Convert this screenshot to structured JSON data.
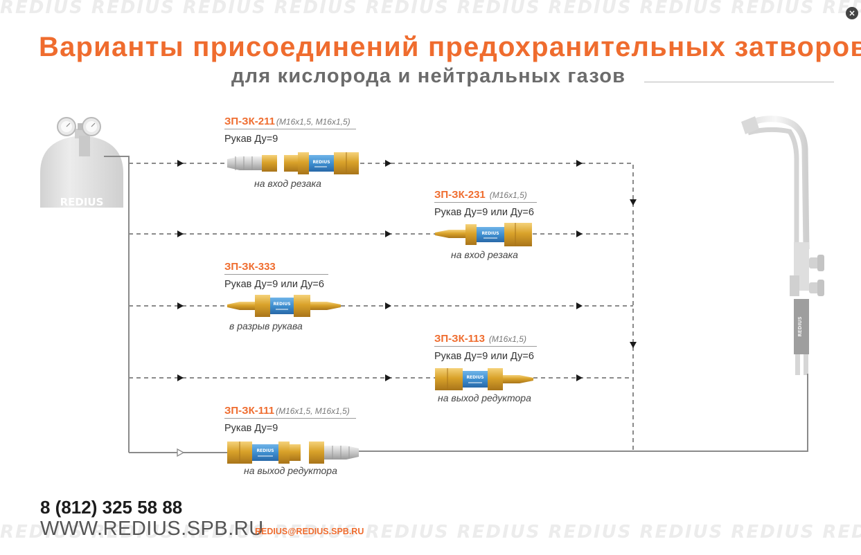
{
  "watermark": "REDIUS",
  "header": {
    "title": "Варианты присоединений предохранительных затворов",
    "subtitle": "для кислорода и нейтральных газов"
  },
  "cylinder_logo": "REDIUS",
  "handle_logo": "REDIUS",
  "variants": [
    {
      "code": "ЗП-ЗК-211",
      "spec": "(М16х1,5, М16х1,5)",
      "hose": "Рукав Ду=9",
      "caption": "на вход резака",
      "body_logo": "REDIUS"
    },
    {
      "code": "ЗП-ЗК-231",
      "spec": "(М16х1,5)",
      "hose": "Рукав Ду=9 или Ду=6",
      "caption": "на вход резака",
      "body_logo": "REDIUS"
    },
    {
      "code": "ЗП-ЗК-333",
      "spec": "",
      "hose": "Рукав Ду=9 или Ду=6",
      "caption": "в разрыв рукава",
      "body_logo": "REDIUS"
    },
    {
      "code": "ЗП-ЗК-113",
      "spec": "(М16х1,5)",
      "hose": "Рукав Ду=9 или Ду=6",
      "caption": "на выход редуктора",
      "body_logo": "REDIUS"
    },
    {
      "code": "ЗП-ЗК-111",
      "spec": "(М16х1,5, М16х1,5)",
      "hose": "Рукав Ду=9",
      "caption": "на выход редуктора",
      "body_logo": "REDIUS"
    }
  ],
  "contacts": {
    "phone": "8 (812) 325 58 88",
    "website": "WWW.REDIUS.SPB.RU",
    "email": "REDIUS@REDIUS.SPB.RU"
  },
  "colors": {
    "accent": "#ef6c2e",
    "valve_body": "#3f8fd0",
    "brass": "#d8a22a",
    "line": "#8a8a8a"
  }
}
